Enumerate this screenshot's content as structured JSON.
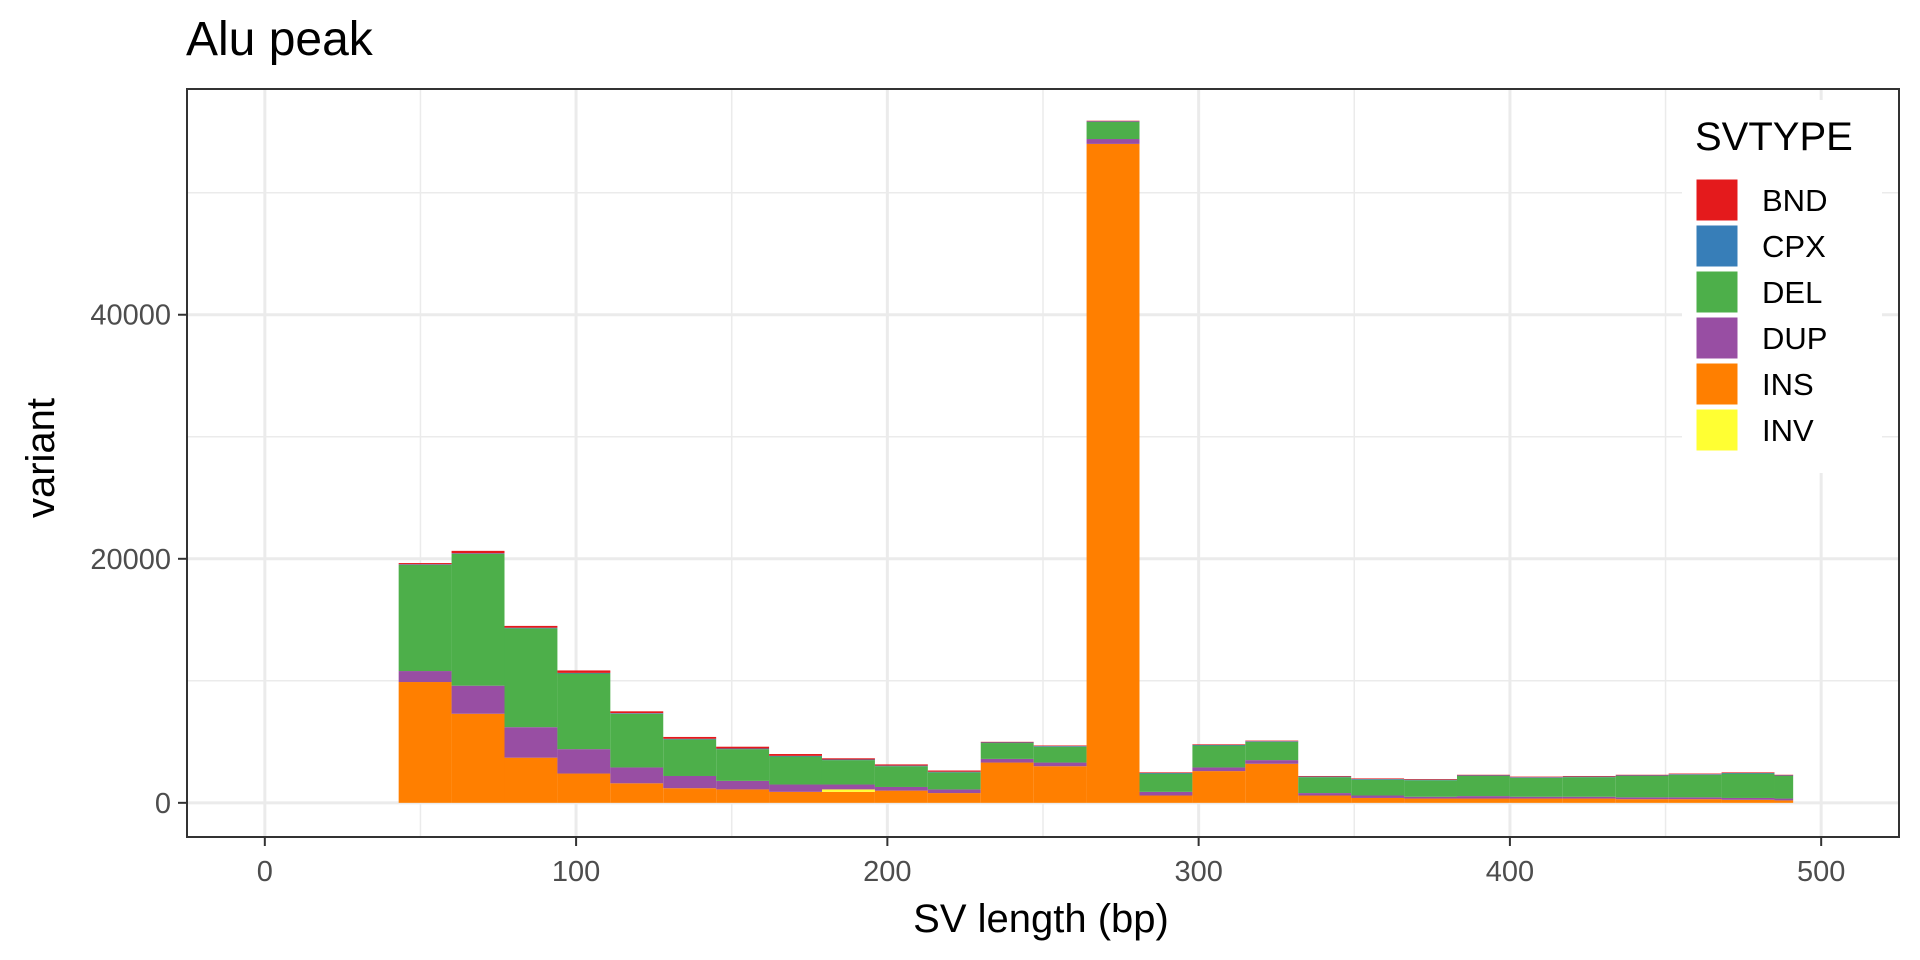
{
  "chart_data": {
    "type": "bar",
    "stacked": true,
    "title": "Alu peak",
    "xlabel": "SV length (bp)",
    "ylabel": "variant",
    "xlim": [
      -25,
      525
    ],
    "ylim": [
      -2800,
      58500
    ],
    "xticks": [
      0,
      100,
      200,
      300,
      400,
      500
    ],
    "yticks": [
      0,
      20000,
      40000
    ],
    "grid": true,
    "legend_title": "SVTYPE",
    "legend_position": "top-right",
    "bins": [
      [
        43,
        60
      ],
      [
        60,
        77
      ],
      [
        77,
        94
      ],
      [
        94,
        111
      ],
      [
        111,
        128
      ],
      [
        128,
        145
      ],
      [
        145,
        162
      ],
      [
        162,
        179
      ],
      [
        179,
        196
      ],
      [
        196,
        213
      ],
      [
        213,
        230
      ],
      [
        230,
        247
      ],
      [
        247,
        264
      ],
      [
        264,
        281
      ],
      [
        281,
        298
      ],
      [
        298,
        315
      ],
      [
        315,
        332
      ],
      [
        332,
        349
      ],
      [
        349,
        366
      ],
      [
        366,
        383
      ],
      [
        383,
        400
      ],
      [
        400,
        417
      ],
      [
        417,
        434
      ],
      [
        434,
        451
      ],
      [
        451,
        468
      ],
      [
        468,
        485
      ],
      [
        485,
        491
      ]
    ],
    "series": [
      {
        "name": "INS",
        "color": "#FF7F00",
        "values": [
          9900,
          7300,
          3700,
          2400,
          1600,
          1200,
          1100,
          900,
          900,
          1000,
          800,
          3300,
          3000,
          54000,
          600,
          2600,
          3200,
          600,
          400,
          350,
          350,
          350,
          350,
          300,
          300,
          250,
          200
        ]
      },
      {
        "name": "INV",
        "color": "#FFFF33",
        "values": [
          0,
          0,
          0,
          0,
          0,
          0,
          0,
          0,
          200,
          0,
          0,
          0,
          0,
          0,
          0,
          0,
          0,
          0,
          0,
          0,
          0,
          0,
          0,
          0,
          0,
          0,
          0
        ]
      },
      {
        "name": "DUP",
        "color": "#984EA3",
        "values": [
          900,
          2300,
          2500,
          2000,
          1300,
          1000,
          700,
          600,
          400,
          300,
          300,
          300,
          300,
          400,
          300,
          300,
          300,
          200,
          200,
          150,
          200,
          150,
          150,
          150,
          150,
          150,
          150
        ]
      },
      {
        "name": "DEL",
        "color": "#4DAF4A",
        "values": [
          8700,
          10800,
          8100,
          6200,
          4400,
          3000,
          2600,
          2300,
          2000,
          1700,
          1400,
          1300,
          1300,
          1400,
          1500,
          1800,
          1500,
          1300,
          1300,
          1350,
          1650,
          1550,
          1600,
          1750,
          1850,
          2000,
          1850
        ]
      },
      {
        "name": "CPX",
        "color": "#377EB8",
        "values": [
          50,
          50,
          50,
          50,
          50,
          50,
          50,
          50,
          50,
          50,
          50,
          50,
          50,
          50,
          50,
          50,
          50,
          50,
          50,
          50,
          50,
          50,
          50,
          50,
          50,
          50,
          50
        ]
      },
      {
        "name": "BND",
        "color": "#E41A1C",
        "values": [
          100,
          200,
          150,
          200,
          150,
          150,
          150,
          150,
          100,
          100,
          100,
          50,
          50,
          50,
          50,
          50,
          50,
          50,
          50,
          50,
          50,
          50,
          50,
          50,
          50,
          50,
          50
        ]
      }
    ],
    "legend": [
      {
        "label": "BND",
        "color": "#E41A1C"
      },
      {
        "label": "CPX",
        "color": "#377EB8"
      },
      {
        "label": "DEL",
        "color": "#4DAF4A"
      },
      {
        "label": "DUP",
        "color": "#984EA3"
      },
      {
        "label": "INS",
        "color": "#FF7F00"
      },
      {
        "label": "INV",
        "color": "#FFFF33"
      }
    ]
  }
}
